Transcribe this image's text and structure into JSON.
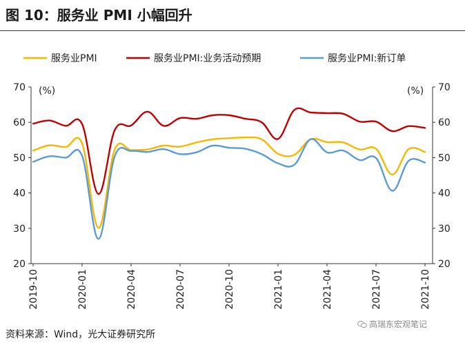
{
  "title": "图 10：服务业 PMI 小幅回升",
  "source": "资料来源：Wind，光大证券研究所",
  "watermark": "高瑞东宏观笔记",
  "chart_data": {
    "type": "line",
    "unit_left": "(%)",
    "unit_right": "(%)",
    "ylim": [
      20,
      70
    ],
    "yticks": [
      20,
      30,
      40,
      50,
      60,
      70
    ],
    "x_tick_labels": [
      "2019-10",
      "2020-01",
      "2020-04",
      "2020-07",
      "2020-10",
      "2021-01",
      "2021-04",
      "2021-07",
      "2021-10"
    ],
    "x_tick_index": [
      0,
      3,
      6,
      9,
      12,
      15,
      18,
      21,
      24
    ],
    "months": [
      "2019-10",
      "2019-11",
      "2019-12",
      "2020-01",
      "2020-02",
      "2020-03",
      "2020-04",
      "2020-05",
      "2020-06",
      "2020-07",
      "2020-08",
      "2020-09",
      "2020-10",
      "2020-11",
      "2020-12",
      "2021-01",
      "2021-02",
      "2021-03",
      "2021-04",
      "2021-05",
      "2021-06",
      "2021-07",
      "2021-08",
      "2021-09",
      "2021-10"
    ],
    "colors": {
      "services_pmi": "#F5B800",
      "business_expectation": "#C00000",
      "new_orders": "#5B9BD5"
    },
    "series": [
      {
        "key": "services_pmi",
        "name": "服务业PMI",
        "values": [
          52.0,
          53.5,
          53.0,
          54.0,
          30.1,
          52.3,
          52.1,
          52.3,
          53.4,
          53.1,
          54.3,
          55.2,
          55.5,
          55.7,
          55.2,
          51.1,
          50.8,
          55.2,
          54.4,
          54.3,
          52.3,
          52.5,
          45.2,
          52.4,
          51.6
        ]
      },
      {
        "key": "business_expectation",
        "name": "服务业PMI:业务活动预期",
        "values": [
          59.6,
          60.5,
          59.0,
          59.5,
          39.7,
          57.8,
          59.1,
          63.0,
          59.0,
          61.2,
          61.0,
          62.0,
          62.0,
          61.0,
          60.0,
          55.3,
          63.5,
          62.8,
          62.6,
          62.4,
          60.2,
          60.2,
          57.5,
          58.9,
          58.4
        ]
      },
      {
        "key": "new_orders",
        "name": "服务业PMI:新订单",
        "values": [
          48.8,
          50.4,
          50.0,
          50.5,
          27.0,
          50.4,
          51.9,
          51.6,
          52.4,
          51.0,
          51.5,
          53.4,
          52.8,
          52.5,
          51.0,
          48.4,
          48.0,
          55.2,
          51.5,
          52.0,
          49.3,
          49.9,
          40.6,
          49.1,
          48.6
        ]
      }
    ]
  }
}
